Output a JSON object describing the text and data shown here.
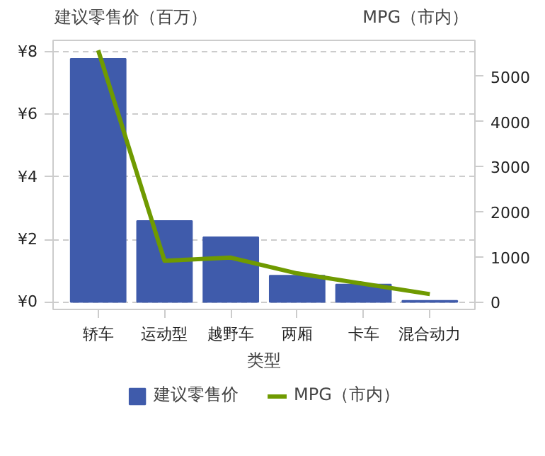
{
  "chart_data": {
    "type": "bar",
    "ylabel": "建议零售价（百万）",
    "y2label": "MPG（市内）",
    "xlabel": "类型",
    "categories": [
      "轿车",
      "运动型",
      "越野车",
      "两厢",
      "卡车",
      "混合动力"
    ],
    "series": [
      {
        "name": "建议零售价",
        "color": "#3f5bab",
        "values": [
          7.77,
          2.59,
          2.07,
          0.84,
          0.56,
          0.04
        ]
      },
      {
        "name": "MPG（市内）",
        "type": "line",
        "axis": "y2",
        "color": "#6f9a00",
        "values": [
          5580,
          910,
          980,
          630,
          400,
          170
        ]
      }
    ],
    "ylim": [
      -0.24,
      8.36
    ],
    "yticks": [
      {
        "value": 0,
        "label": "¥0"
      },
      {
        "value": 2,
        "label": "¥2"
      },
      {
        "value": 4,
        "label": "¥4"
      },
      {
        "value": 6,
        "label": "¥6"
      },
      {
        "value": 8,
        "label": "¥8"
      }
    ],
    "y2lim": [
      -170,
      5800
    ],
    "y2ticks": [
      0,
      1000,
      2000,
      3000,
      4000,
      5000
    ],
    "grid": "y",
    "legend": "bottom"
  }
}
